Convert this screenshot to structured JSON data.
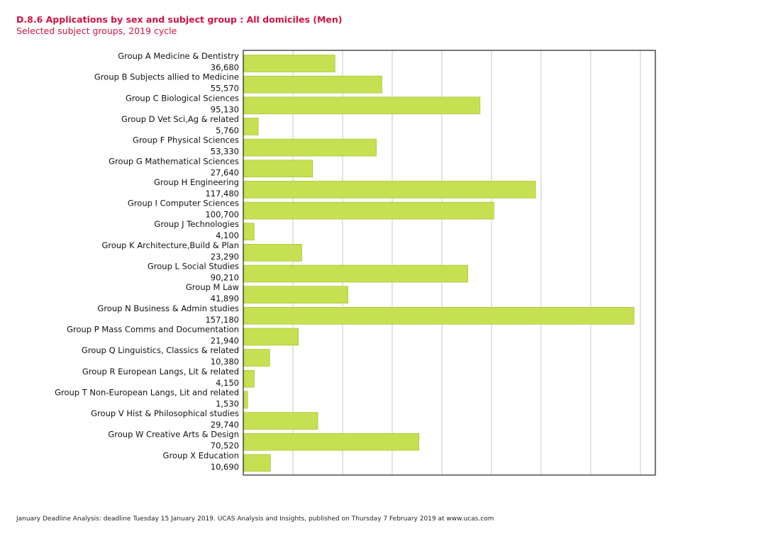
{
  "title": "D.8.6 Applications by sex and subject group : All domiciles (Men)",
  "subtitle": "Selected subject groups, 2019 cycle",
  "footer": "January Deadline Analysis: deadline Tuesday 15 January 2019. UCAS Analysis and Insights, published on Thursday 7 February 2019 at www.ucas.com",
  "colors": {
    "bar": "#c5e050",
    "bar_stroke": "#9fbd2a",
    "title": "#d11242",
    "grid": "#c8c8c8",
    "axis": "#222222"
  },
  "chart_data": {
    "type": "bar",
    "orientation": "horizontal",
    "categories": [
      "Group A Medicine & Dentistry",
      "Group B Subjects allied to Medicine",
      "Group C Biological Sciences",
      "Group D Vet Sci,Ag & related",
      "Group F Physical Sciences",
      "Group G Mathematical Sciences",
      "Group H Engineering",
      "Group I Computer Sciences",
      "Group J Technologies",
      "Group K Architecture,Build & Plan",
      "Group L Social Studies",
      "Group M Law",
      "Group N Business & Admin studies",
      "Group P Mass Comms and Documentation",
      "Group Q Linguistics, Classics & related",
      "Group R European Langs, Lit & related",
      "Group T Non-European Langs, Lit and related",
      "Group V Hist & Philosophical studies",
      "Group W Creative Arts & Design",
      "Group X Education"
    ],
    "value_labels": [
      "36,680",
      "55,570",
      "95,130",
      "5,760",
      "53,330",
      "27,640",
      "117,480",
      "100,700",
      "4,100",
      "23,290",
      "90,210",
      "41,890",
      "157,180",
      "21,940",
      "10,380",
      "4,150",
      "1,530",
      "29,740",
      "70,520",
      "10,690"
    ],
    "values": [
      36680,
      55570,
      95130,
      5760,
      53330,
      27640,
      117480,
      100700,
      4100,
      23290,
      90210,
      41890,
      157180,
      21940,
      10380,
      4150,
      1530,
      29740,
      70520,
      10690
    ],
    "xlim": [
      0,
      165000
    ],
    "x_grid_step": 20000,
    "grid": true,
    "legend": "none",
    "title": "D.8.6 Applications by sex and subject group : All domiciles (Men)",
    "subtitle": "Selected subject groups, 2019 cycle"
  }
}
